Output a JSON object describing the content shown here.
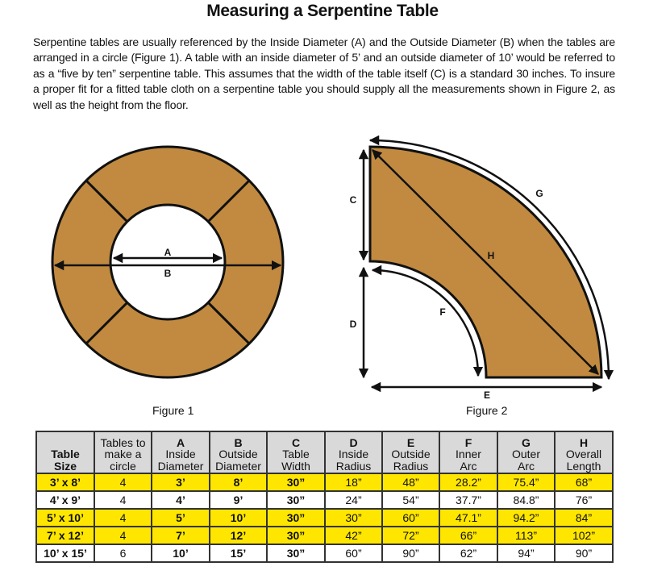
{
  "title": "Measuring a Serpentine Table",
  "intro": "Serpentine tables are usually referenced by the Inside Diameter (A) and the Outside Diameter (B) when the tables are arranged in a circle (Figure 1). A table with an inside diameter of 5’ and an outside diameter of 10’ would be referred to as a “five by ten” serpentine table. This assumes that the width of the table itself (C) is a standard 30 inches. To insure a proper fit for a fitted table cloth on a serpentine table you should supply all the measurements shown in Figure 2, as well as the height from the floor.",
  "colors": {
    "table_fill": "#c18a40",
    "highlight": "#ffe600",
    "header_bg": "#d9d9d9"
  },
  "figure1": {
    "caption": "Figure 1",
    "labels": {
      "a": "A",
      "b": "B"
    }
  },
  "figure2": {
    "caption": "Figure 2",
    "labels": {
      "c": "C",
      "d": "D",
      "e": "E",
      "f": "F",
      "g": "G",
      "h": "H"
    }
  },
  "table": {
    "headers": [
      {
        "letter": "",
        "line1": "Table",
        "line2": "Size"
      },
      {
        "letter": "Tables to",
        "line1": "make a",
        "line2": "circle"
      },
      {
        "letter": "A",
        "line1": "Inside",
        "line2": "Diameter"
      },
      {
        "letter": "B",
        "line1": "Outside",
        "line2": "Diameter"
      },
      {
        "letter": "C",
        "line1": "Table",
        "line2": "Width"
      },
      {
        "letter": "D",
        "line1": "Inside",
        "line2": "Radius"
      },
      {
        "letter": "E",
        "line1": "Outside",
        "line2": "Radius"
      },
      {
        "letter": "F",
        "line1": "Inner",
        "line2": "Arc"
      },
      {
        "letter": "G",
        "line1": "Outer",
        "line2": "Arc"
      },
      {
        "letter": "H",
        "line1": "Overall",
        "line2": "Length"
      }
    ],
    "rows": [
      {
        "highlighted": true,
        "cells": [
          "3’ x 8’",
          "4",
          "3’",
          "8’",
          "30”",
          "18”",
          "48”",
          "28.2”",
          "75.4”",
          "68”"
        ]
      },
      {
        "highlighted": false,
        "cells": [
          "4’ x 9’",
          "4",
          "4’",
          "9’",
          "30”",
          "24”",
          "54”",
          "37.7”",
          "84.8”",
          "76”"
        ]
      },
      {
        "highlighted": true,
        "cells": [
          "5’ x 10’",
          "4",
          "5’",
          "10’",
          "30”",
          "30”",
          "60”",
          "47.1”",
          "94.2”",
          "84”"
        ]
      },
      {
        "highlighted": true,
        "cells": [
          "7’ x 12’",
          "4",
          "7’",
          "12’",
          "30”",
          "42”",
          "72”",
          "66”",
          "113”",
          "102”"
        ]
      },
      {
        "highlighted": false,
        "cells": [
          "10’ x 15’",
          "6",
          "10’",
          "15’",
          "30”",
          "60”",
          "90”",
          "62”",
          "94”",
          "90”"
        ]
      }
    ]
  }
}
